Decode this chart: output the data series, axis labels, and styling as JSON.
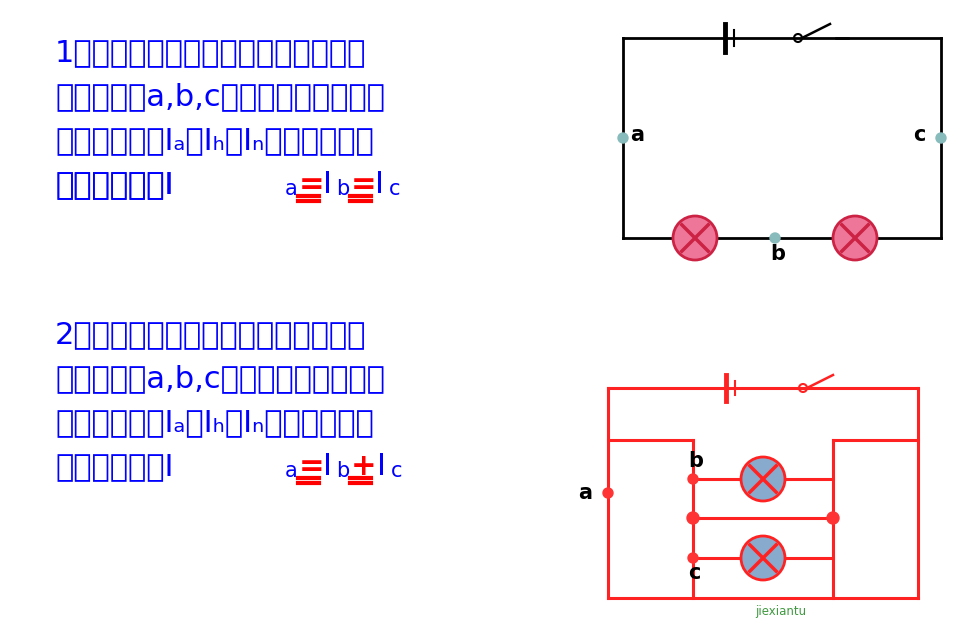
{
  "bg_color": "#ffffff",
  "blue": "#0000FF",
  "black": "#000000",
  "red": "#FF0000",
  "c1": "#000000",
  "c2": "#FF2222",
  "lamp_pink": "#EE7799",
  "lamp_blue": "#88AACC",
  "node_teal": "#88BBBB",
  "node_red": "#FF3333",
  "line1": "1、如图所示，串联电路中，把电流表",
  "line2": "分别连接在a,b,c处，闭合开关，测得",
  "line3": "的电流分别为Iₐ、Iₕ、Iₙ，这三个电流",
  "line4_pre": "之间的关系是I",
  "line21": "2、如图所示，并联电路中，把电流表",
  "line22": "分别连接在a,b,c处，闭合开关，测得",
  "line23": "的电流分别为Iₐ、Iₕ、Iₙ，这三个电流",
  "line24_pre": "之间的关系是I"
}
